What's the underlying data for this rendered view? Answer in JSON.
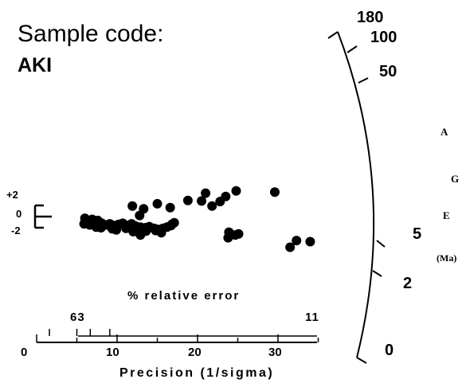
{
  "chart_data": {
    "type": "scatter",
    "plot_kind": "radial plot",
    "title_line1": "Sample code:",
    "title_line2": "AKI",
    "xlabel": "Precision (1/sigma)",
    "x_ticks": [
      "0",
      "10",
      "20",
      "30"
    ],
    "xlim": [
      0,
      35
    ],
    "rel_error_label": "% relative error",
    "rel_error_ticks": [
      "63",
      "11"
    ],
    "rel_error_values": [
      63,
      11
    ],
    "y_scale_ticks": [
      "+2",
      "0",
      "-2"
    ],
    "arc_ticks": [
      "180",
      "100",
      "50",
      "5",
      "2",
      "0"
    ],
    "arc_title_letters": [
      "A",
      "G",
      "E"
    ],
    "arc_unit": "(Ma)",
    "points": [
      {
        "x": 21.0,
        "y": 4.2
      },
      {
        "x": 24.8,
        "y": 4.6
      },
      {
        "x": 29.6,
        "y": 4.4
      },
      {
        "x": 23.5,
        "y": 3.6
      },
      {
        "x": 18.8,
        "y": 2.9
      },
      {
        "x": 20.5,
        "y": 2.8
      },
      {
        "x": 22.8,
        "y": 2.7
      },
      {
        "x": 15.0,
        "y": 2.3
      },
      {
        "x": 11.9,
        "y": 1.9
      },
      {
        "x": 16.6,
        "y": 1.6
      },
      {
        "x": 13.3,
        "y": 1.4
      },
      {
        "x": 21.8,
        "y": 1.9
      },
      {
        "x": 12.8,
        "y": 0.2
      },
      {
        "x": 6.0,
        "y": -0.3
      },
      {
        "x": 6.9,
        "y": -0.5
      },
      {
        "x": 7.6,
        "y": -0.7
      },
      {
        "x": 5.9,
        "y": -1.3
      },
      {
        "x": 6.6,
        "y": -1.5
      },
      {
        "x": 7.1,
        "y": -1.4
      },
      {
        "x": 8.1,
        "y": -1.2
      },
      {
        "x": 8.7,
        "y": -1.5
      },
      {
        "x": 9.1,
        "y": -1.3
      },
      {
        "x": 9.6,
        "y": -1.6
      },
      {
        "x": 10.2,
        "y": -1.4
      },
      {
        "x": 10.7,
        "y": -1.2
      },
      {
        "x": 11.2,
        "y": -1.6
      },
      {
        "x": 11.8,
        "y": -1.3
      },
      {
        "x": 12.3,
        "y": -1.7
      },
      {
        "x": 12.9,
        "y": -1.9
      },
      {
        "x": 13.5,
        "y": -2.0
      },
      {
        "x": 14.0,
        "y": -1.8
      },
      {
        "x": 14.6,
        "y": -2.1
      },
      {
        "x": 15.1,
        "y": -2.3
      },
      {
        "x": 15.7,
        "y": -2.1
      },
      {
        "x": 16.2,
        "y": -1.9
      },
      {
        "x": 16.7,
        "y": -1.6
      },
      {
        "x": 17.1,
        "y": -1.1
      },
      {
        "x": 16.8,
        "y": -1.4
      },
      {
        "x": 14.8,
        "y": -2.5
      },
      {
        "x": 12.0,
        "y": -2.7
      },
      {
        "x": 12.9,
        "y": -3.3
      },
      {
        "x": 9.9,
        "y": -2.4
      },
      {
        "x": 8.0,
        "y": -2.0
      },
      {
        "x": 11.1,
        "y": -2.1
      },
      {
        "x": 13.6,
        "y": -2.6
      },
      {
        "x": 15.5,
        "y": -2.9
      },
      {
        "x": 7.4,
        "y": -1.9
      },
      {
        "x": 9.4,
        "y": -2.2
      },
      {
        "x": 23.9,
        "y": -2.8
      },
      {
        "x": 25.1,
        "y": -3.1
      },
      {
        "x": 23.8,
        "y": -3.8
      },
      {
        "x": 24.7,
        "y": -3.3
      },
      {
        "x": 32.3,
        "y": -4.3
      },
      {
        "x": 34.0,
        "y": -4.5
      },
      {
        "x": 31.5,
        "y": -5.5
      }
    ],
    "grid": false,
    "legend": "none"
  }
}
